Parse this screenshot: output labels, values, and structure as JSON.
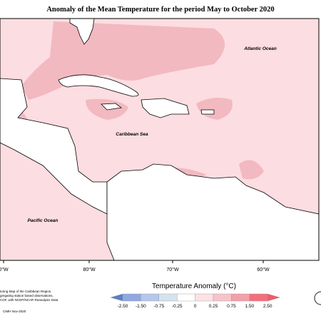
{
  "header": {
    "title": "Anomaly of the Mean Temperature for the period May to October 2020"
  },
  "map": {
    "labels": [
      "Atlantic Ocean",
      "Caribbean Sea",
      "Pacific Ocean"
    ],
    "longitudes": [
      "0°W",
      "80°W",
      "70°W",
      "60°W"
    ]
  },
  "legend": {
    "title": "Temperature Anomaly (°C)",
    "ticks": [
      "-2.50",
      "-1.50",
      "-0.75",
      "-0.25",
      "0",
      "0.25",
      "0.75",
      "1.50",
      "2.50"
    ],
    "colors": [
      "#5b7fc4",
      "#8fa8e0",
      "#b6c6ec",
      "#d5e3ee",
      "#ffffff",
      "#fde2e5",
      "#f7c3ca",
      "#f2a0aa",
      "#f2707e",
      "#f25a6a"
    ]
  },
  "credits": [
    "toring Map of the Caribbean Region.",
    "gregating station based observations,",
    "COF, with NCEP/NCAR Reanalysis Data",
    "CIMH Nov-2020"
  ]
}
